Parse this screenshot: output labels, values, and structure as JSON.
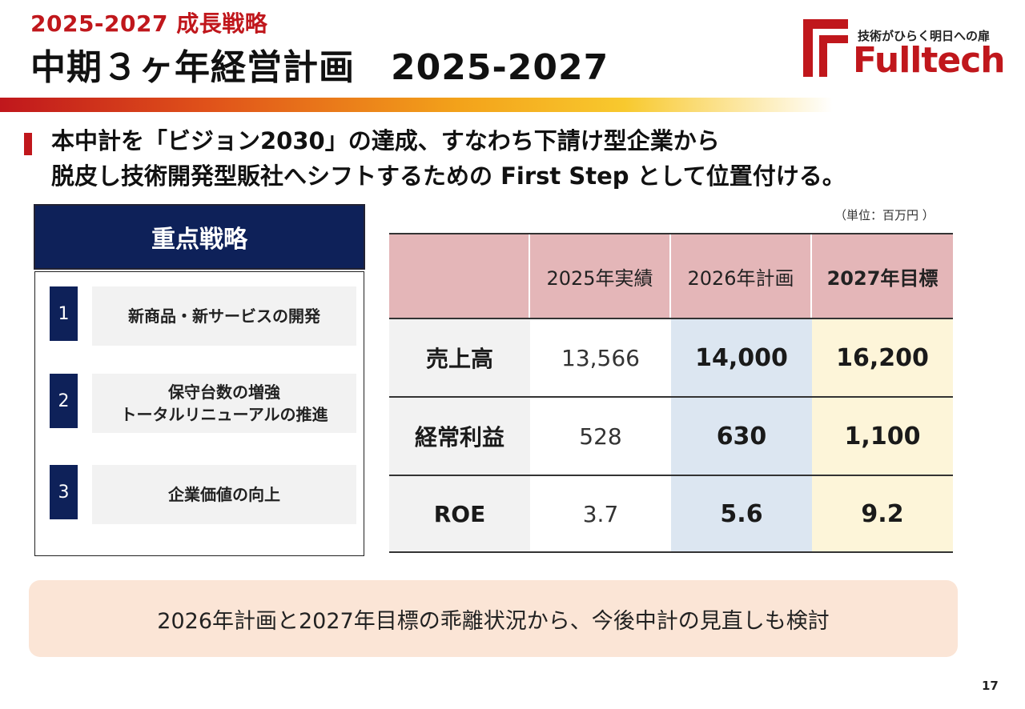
{
  "header": {
    "subtitle": "2025-2027 成長戦略",
    "title": "中期３ヶ年経営計画　2025-2027"
  },
  "logo": {
    "tagline": "技術がひらく明日への扉",
    "name": "Fulltech",
    "color": "#c0171c"
  },
  "lead": {
    "line1": "本中計を「ビジョン2030」の達成、すなわち下請け型企業から",
    "line2": "脱皮し技術開発型販社へシフトするための First Step として位置付ける。"
  },
  "strategy": {
    "heading": "重点戦略",
    "items": [
      {
        "num": "1",
        "label": "新商品・新サービスの開発"
      },
      {
        "num": "2",
        "label": "保守台数の増強\nトータルリニューアルの推進"
      },
      {
        "num": "3",
        "label": "企業価値の向上"
      }
    ]
  },
  "table": {
    "unit": "（単位：百万円 ）",
    "headers": [
      "",
      "2025年実績",
      "2026年計画",
      "2027年目標"
    ],
    "rows": [
      {
        "label": "売上高",
        "v2025": "13,566",
        "v2026": "14,000",
        "v2027": "16,200"
      },
      {
        "label": "経常利益",
        "v2025": "528",
        "v2026": "630",
        "v2027": "1,100"
      },
      {
        "label": "ROE",
        "v2025": "3.7",
        "v2026": "5.6",
        "v2027": "9.2"
      }
    ]
  },
  "note": "2026年計画と2027年目標の乖離状況から、今後中計の見直しも検討",
  "page_number": "17",
  "colors": {
    "accent_red": "#c0171c",
    "navy": "#0e2159",
    "header_pink": "#e4b6b8",
    "plan_blue": "#dce6f1",
    "target_cream": "#fdf5d9",
    "note_peach": "#fbe5d6"
  }
}
